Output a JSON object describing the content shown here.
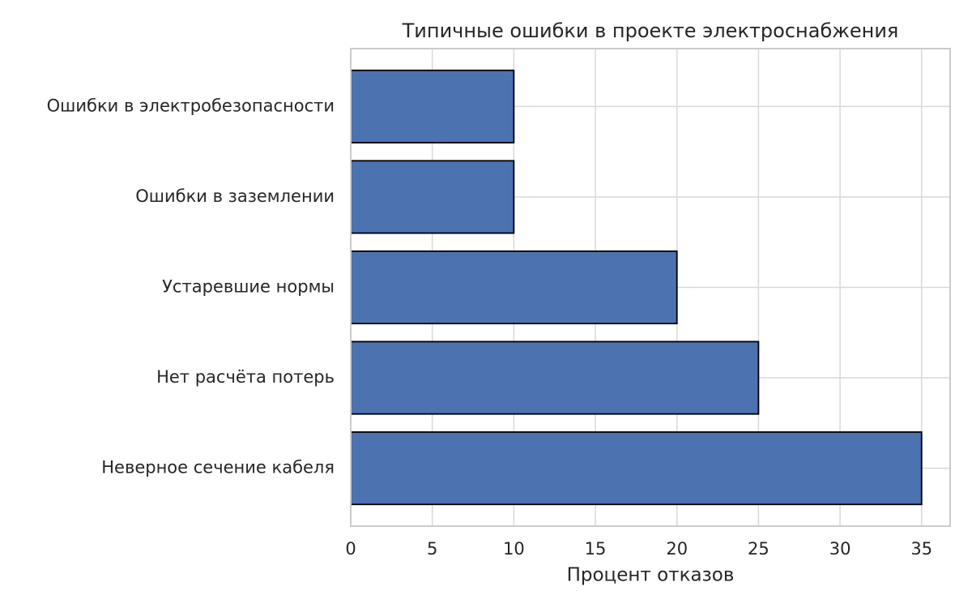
{
  "chart_data": {
    "type": "barh",
    "title": "Типичные ошибки в проекте электроснабжения",
    "xlabel": "Процент отказов",
    "categories": [
      "Неверное сечение кабеля",
      "Нет расчёта потерь",
      "Устаревшие нормы",
      "Ошибки в заземлении",
      "Ошибки в электробезопасности"
    ],
    "values": [
      35,
      25,
      20,
      10,
      10
    ],
    "color": "#4c72b0",
    "edgecolor": "#000000",
    "xlim": [
      0,
      36.75
    ],
    "xticks": [
      0,
      5,
      10,
      15,
      20,
      25,
      30,
      35
    ],
    "grid": true
  }
}
